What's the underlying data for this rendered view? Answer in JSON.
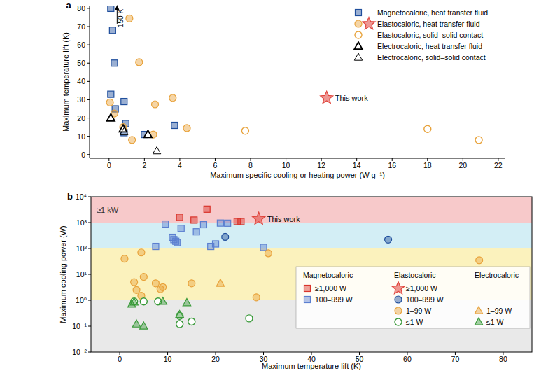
{
  "chart_data": [
    {
      "title": "a",
      "type": "scatter",
      "x_label": "Maximum specific cooling or heating power (W g⁻¹)",
      "y_label": "Maximum temperature lift (K)",
      "xlim": [
        -1.1,
        22.4
      ],
      "xticks": [
        0,
        2,
        4,
        6,
        8,
        10,
        12,
        14,
        16,
        18,
        20,
        22
      ],
      "ylim": [
        -2,
        81.5
      ],
      "yticks": [
        0,
        10,
        20,
        30,
        40,
        50,
        60,
        70,
        80
      ],
      "legend": "upper right",
      "annotations": [
        {
          "text": "150 K",
          "x": 0.1,
          "y": 80
        },
        {
          "text": "This work",
          "x": 12.3,
          "y": 31
        }
      ],
      "series": [
        {
          "name": "Magnetocaloric, heat transfer fluid",
          "color": "#1f4e9c",
          "marker": "square",
          "x": [
            0.1,
            0.2,
            0.3,
            0.1,
            0.35,
            0.85,
            0.95,
            0.85,
            2.0,
            3.7
          ],
          "values": [
            80,
            68,
            50,
            33,
            25,
            29,
            17,
            12,
            11,
            16
          ]
        },
        {
          "name": "Elastocaloric, heat transfer fluid",
          "color": "#e8a23a",
          "marker": "circle",
          "x": [
            1.15,
            1.7,
            0.05,
            0.3,
            2.6,
            3.6,
            0.8,
            1.3,
            2.5,
            4.4
          ],
          "values": [
            74.5,
            50.5,
            28.5,
            22.5,
            27.5,
            31,
            15,
            8,
            11,
            14.5
          ]
        },
        {
          "color": "#e0443c",
          "marker": "star",
          "x": [
            12.3
          ],
          "values": [
            31
          ]
        },
        {
          "name": "Elastocaloric, solid–solid contact",
          "color": "#e8a23a",
          "marker": "circle-open",
          "x": [
            7.7,
            18,
            20.9
          ],
          "values": [
            13,
            14,
            8
          ]
        },
        {
          "name": "Electrocaloric, heat transfer fluid",
          "color": "#000000",
          "marker": "triangle-thick",
          "x": [
            0.1,
            0.8,
            2.2
          ],
          "values": [
            20,
            14,
            11
          ]
        },
        {
          "name": "Electrocaloric, solid–solid contact",
          "color": "#000000",
          "marker": "triangle-open",
          "x": [
            0.85,
            2.7
          ],
          "values": [
            12.5,
            2
          ]
        }
      ]
    },
    {
      "title": "b",
      "type": "scatter",
      "log": "y",
      "x_label": "Maximum temperature lift (K)",
      "y_label": "Maximum cooling power (W)",
      "xlim": [
        -6,
        86
      ],
      "xticks": [
        0,
        10,
        20,
        30,
        40,
        50,
        60,
        70,
        80
      ],
      "ylim": [
        0.01,
        10000
      ],
      "yticks": [
        {
          "value": 0.01,
          "label": "10⁻²"
        },
        {
          "value": 0.1,
          "label": "10⁻¹"
        },
        {
          "value": 1,
          "label": "10⁰"
        },
        {
          "value": 10,
          "label": "10¹"
        },
        {
          "value": 100,
          "label": "10²"
        },
        {
          "value": 1000,
          "label": "10³"
        },
        {
          "value": 10000,
          "label": "10⁴"
        }
      ],
      "legend": "lower right",
      "bands": [
        {
          "from": 1000,
          "to": 10000,
          "label": "≥1 kW",
          "color": "#f7c9ca"
        },
        {
          "from": 100,
          "to": 1000,
          "color": "#d3eef5"
        },
        {
          "from": 1,
          "to": 100,
          "color": "#fbf2bd"
        },
        {
          "from": 0.01,
          "to": 1,
          "color": "#e9e9e9"
        }
      ],
      "annotations": [
        {
          "text": "This work",
          "x": 29,
          "y": 1400
        }
      ],
      "series": [
        {
          "group": "Magnetocaloric",
          "name": "≥1,000 W",
          "color": "#d9342b",
          "marker": "square",
          "x": [
            12.5,
            15.5,
            18.2,
            24.5,
            25.3
          ],
          "values": [
            1600,
            1250,
            3300,
            1100,
            1100
          ]
        },
        {
          "group": "Magnetocaloric",
          "name": "100–999 W",
          "color": "#5b7fd0",
          "marker": "square",
          "x": [
            7.5,
            9.5,
            11,
            11.3,
            11.7,
            12,
            12.8,
            16,
            17.5,
            19,
            20,
            21,
            22.5,
            30
          ],
          "values": [
            120,
            880,
            270,
            220,
            190,
            170,
            600,
            440,
            830,
            120,
            150,
            960,
            950,
            110
          ]
        },
        {
          "group": "Elastocaloric",
          "name": "≥1,000 W",
          "color": "#e0443c",
          "marker": "star",
          "x": [
            29
          ],
          "values": [
            1400
          ]
        },
        {
          "group": "Elastocaloric",
          "name": "100–999 W",
          "color": "#1f4e9c",
          "marker": "circle",
          "x": [
            22,
            56
          ],
          "values": [
            280,
            220
          ]
        },
        {
          "group": "Elastocaloric",
          "name": "1–99 W",
          "color": "#e8a23a",
          "marker": "circle",
          "x": [
            1,
            3,
            3.5,
            4.5,
            4.5,
            5,
            7.5,
            8.5,
            9,
            15,
            28.5,
            31,
            75
          ],
          "values": [
            40,
            5,
            2.5,
            70,
            1.5,
            8,
            4.5,
            2.7,
            3.2,
            4.5,
            1.3,
            65,
            35
          ]
        },
        {
          "group": "Elastocaloric",
          "name": "≤1 W",
          "color": "#3a9a3a",
          "marker": "circle-open",
          "x": [
            3,
            5,
            8,
            12.5,
            12.5,
            15,
            27
          ],
          "values": [
            0.9,
            0.9,
            0.9,
            0.25,
            0.12,
            0.15,
            0.2
          ]
        },
        {
          "group": "Electrocaloric",
          "name": "1–99 W",
          "color": "#e8a23a",
          "marker": "triangle",
          "x": [
            21
          ],
          "values": [
            4.5
          ]
        },
        {
          "group": "Electrocaloric",
          "name": "≤1 W",
          "color": "#3a9a3a",
          "marker": "triangle",
          "x": [
            2.5,
            3,
            3.5,
            5,
            9,
            12.5,
            14
          ],
          "values": [
            0.7,
            0.85,
            0.12,
            0.1,
            0.9,
            0.28,
            0.8
          ]
        }
      ]
    }
  ]
}
